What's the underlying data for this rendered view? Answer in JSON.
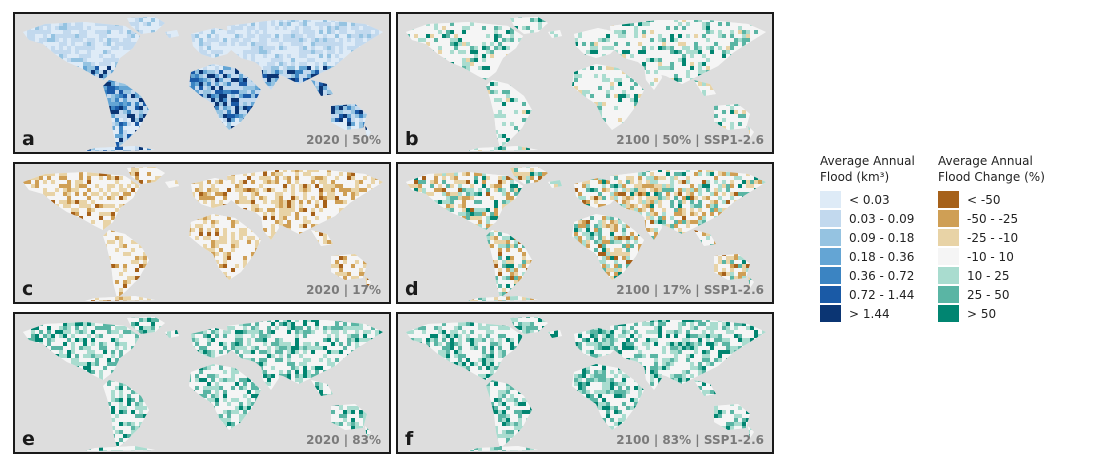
{
  "colors": {
    "ocean": "#dddddd",
    "land_neutral": "#f2f2f2",
    "flood_scale": [
      "#deebf7",
      "#c2d9ee",
      "#95c3e1",
      "#64a5d4",
      "#3b84c2",
      "#1a5aa6",
      "#0b3573"
    ],
    "change_scale": [
      "#a6611a",
      "#cf9f55",
      "#e8d3a6",
      "#f5f5f5",
      "#a9dccf",
      "#5ab5a4",
      "#018571"
    ]
  },
  "panels": [
    {
      "letter": "a",
      "caption": "2020 | 50%",
      "palette": "flood",
      "seed": 11
    },
    {
      "letter": "b",
      "caption": "2100 | 50% | SSP1-2.6",
      "palette": "change_pos",
      "seed": 23
    },
    {
      "letter": "c",
      "caption": "2020 | 17%",
      "palette": "change_neg",
      "seed": 37
    },
    {
      "letter": "d",
      "caption": "2100 | 17% | SSP1-2.6",
      "palette": "change_mixed",
      "seed": 41
    },
    {
      "letter": "e",
      "caption": "2020 | 83%",
      "palette": "change_pos_strong",
      "seed": 53
    },
    {
      "letter": "f",
      "caption": "2100 | 83% | SSP1-2.6",
      "palette": "change_pos_strong",
      "seed": 67
    }
  ],
  "legend_flood": {
    "title_line1": "Average Annual",
    "title_line2": "Flood (km³)",
    "items": [
      {
        "label": "< 0.03",
        "color": "#deebf7"
      },
      {
        "label": "0.03 - 0.09",
        "color": "#c2d9ee"
      },
      {
        "label": "0.09 - 0.18",
        "color": "#95c3e1"
      },
      {
        "label": "0.18 - 0.36",
        "color": "#64a5d4"
      },
      {
        "label": "0.36 - 0.72",
        "color": "#3b84c2"
      },
      {
        "label": "0.72 - 1.44",
        "color": "#1a5aa6"
      },
      {
        "label": "> 1.44",
        "color": "#0b3573"
      }
    ]
  },
  "legend_change": {
    "title_line1": "Average Annual",
    "title_line2": "Flood Change (%)",
    "items": [
      {
        "label": "< -50",
        "color": "#a6611a"
      },
      {
        "label": "-50 - -25",
        "color": "#cf9f55"
      },
      {
        "label": "-25 - -10",
        "color": "#e8d3a6"
      },
      {
        "label": "-10 - 10",
        "color": "#f5f5f5"
      },
      {
        "label": "10 - 25",
        "color": "#a9dccf"
      },
      {
        "label": "25 - 50",
        "color": "#5ab5a4"
      },
      {
        "label": "> 50",
        "color": "#018571"
      }
    ]
  }
}
